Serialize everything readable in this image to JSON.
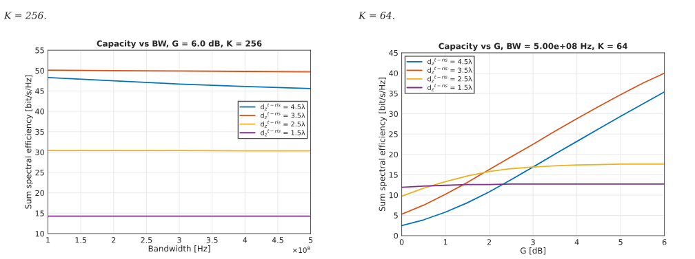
{
  "chart_data": [
    {
      "type": "line",
      "title": "Capacity vs BW, G = 6.0 dB, K = 256",
      "xlabel": "Bandwidth [Hz]",
      "ylabel": "Sum spectral efficiency [bit/s/Hz]",
      "annotations": [
        "K = 256.",
        "×10$^{8}$"
      ],
      "x": [
        1,
        2,
        3,
        4,
        5
      ],
      "series": [
        {
          "name": "d$_{z}$$^{t−ris}$ = 4.5λ",
          "color": "#0072bd",
          "values": [
            48.3,
            47.5,
            46.7,
            46.1,
            45.6
          ]
        },
        {
          "name": "d$_{z}$$^{t−ris}$ = 3.5λ",
          "color": "#d95319",
          "values": [
            50.1,
            50.0,
            49.9,
            49.8,
            49.7
          ]
        },
        {
          "name": "d$_{z}$$^{t−ris}$ = 2.5λ",
          "color": "#edb120",
          "values": [
            30.4,
            30.4,
            30.4,
            30.3,
            30.3
          ]
        },
        {
          "name": "d$_{z}$$^{t−ris}$ = 1.5λ",
          "color": "#7e2f8e",
          "values": [
            14.3,
            14.3,
            14.3,
            14.3,
            14.3
          ]
        }
      ],
      "xlim": [
        1,
        5
      ],
      "xticks": [
        1,
        1.5,
        2,
        2.5,
        3,
        3.5,
        4,
        4.5,
        5
      ],
      "ylim": [
        10,
        55
      ],
      "yticks": [
        10,
        15,
        20,
        25,
        30,
        35,
        40,
        45,
        50,
        55
      ],
      "grid": true,
      "legend": "right"
    },
    {
      "type": "line",
      "title": "Capacity vs G, BW = 5.00e+08 Hz, K = 64",
      "xlabel": "G [dB]",
      "ylabel": "Sum spectral efficiency [bit/s/Hz]",
      "annotations": [
        "K = 64."
      ],
      "x": [
        0,
        0.5,
        1,
        1.5,
        2,
        2.5,
        3,
        3.5,
        4,
        4.5,
        5,
        5.5,
        6
      ],
      "series": [
        {
          "name": "d$_{z}$$^{t−ris}$ = 4.5λ",
          "color": "#0072bd",
          "values": [
            2.5,
            3.9,
            5.8,
            8.1,
            10.8,
            13.8,
            16.9,
            20.1,
            23.2,
            26.3,
            29.4,
            32.4,
            35.4
          ]
        },
        {
          "name": "d$_{z}$$^{t−ris}$ = 3.5λ",
          "color": "#d95319",
          "values": [
            5.3,
            7.5,
            10.2,
            13.1,
            16.3,
            19.4,
            22.5,
            25.7,
            28.8,
            31.8,
            34.7,
            37.5,
            40.0
          ]
        },
        {
          "name": "d$_{z}$$^{t−ris}$ = 2.5λ",
          "color": "#edb120",
          "values": [
            9.7,
            11.7,
            13.3,
            14.7,
            15.8,
            16.5,
            16.9,
            17.2,
            17.4,
            17.5,
            17.6,
            17.6,
            17.6
          ]
        },
        {
          "name": "d$_{z}$$^{t−ris}$ = 1.5λ",
          "color": "#7e2f8e",
          "values": [
            11.9,
            12.2,
            12.4,
            12.6,
            12.6,
            12.7,
            12.7,
            12.7,
            12.7,
            12.7,
            12.7,
            12.7,
            12.7
          ]
        }
      ],
      "xlim": [
        0,
        6
      ],
      "xticks": [
        0,
        1,
        2,
        3,
        4,
        5,
        6
      ],
      "ylim": [
        0,
        45
      ],
      "yticks": [
        0,
        5,
        10,
        15,
        20,
        25,
        30,
        35,
        40,
        45
      ],
      "grid": true,
      "legend": "top left"
    }
  ]
}
